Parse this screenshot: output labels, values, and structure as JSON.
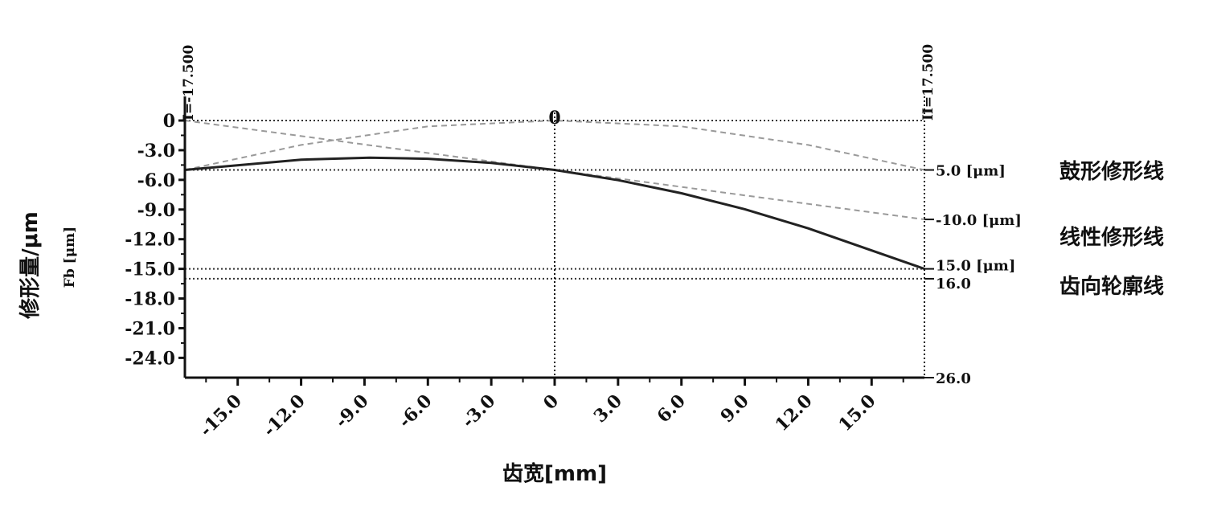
{
  "chart_data": {
    "type": "line",
    "xlabel": "齿宽[mm]",
    "ylabel": "修形量/μm",
    "ylabel_inner": "Fb [μm]",
    "xlim": [
      -17.5,
      17.5
    ],
    "ylim": [
      -26,
      0
    ],
    "x_ticks": [
      -15,
      -12,
      -9,
      -6,
      -3,
      0,
      3,
      6,
      9,
      12,
      15
    ],
    "x_tick_labels": [
      "-15.0",
      "-12.0",
      "-9.0",
      "-6.0",
      "-3.0",
      "0",
      "3.0",
      "6.0",
      "9.0",
      "12.0",
      "15.0"
    ],
    "y_ticks": [
      0,
      -3,
      -6,
      -9,
      -12,
      -15,
      -18,
      -21,
      -24
    ],
    "y_tick_labels": [
      "0",
      "-3.0",
      "-6.0",
      "-9.0",
      "-12.0",
      "-15.0",
      "-18.0",
      "-21.0",
      "-24.0"
    ],
    "top_left_label": "I=-17.500",
    "top_right_label": "II=17.500",
    "top_center_label": "0",
    "right_labels": [
      {
        "value": -5,
        "text": "5.0 [μm]"
      },
      {
        "value": -10,
        "text": "-10.0 [μm]"
      },
      {
        "value": -15,
        "text": "15.0 [μm]"
      },
      {
        "value": -16,
        "text": "16.0"
      },
      {
        "value": -26,
        "text": "26.0"
      }
    ],
    "reference_lines_y": [
      0,
      -5,
      -15,
      -16
    ],
    "series": [
      {
        "name": "鼓形修形线",
        "style": "dashed",
        "x": [
          -17.5,
          -12,
          -6,
          0,
          6,
          12,
          17.5
        ],
        "y": [
          -5,
          -2.47,
          -0.59,
          0,
          -0.59,
          -2.47,
          -5
        ]
      },
      {
        "name": "线性修形线",
        "style": "dashed",
        "x": [
          -17.5,
          0,
          17.5
        ],
        "y": [
          0,
          -5,
          -10
        ]
      },
      {
        "name": "齿向轮廓线",
        "style": "solid",
        "x": [
          -17.5,
          -12,
          -8.75,
          -6,
          -3,
          0,
          3,
          6,
          9,
          12,
          15,
          17.5
        ],
        "y": [
          -5,
          -3.96,
          -3.75,
          -3.87,
          -4.28,
          -5,
          -6.03,
          -7.35,
          -8.97,
          -10.9,
          -13.14,
          -15
        ]
      }
    ],
    "legend": [
      "鼓形修形线",
      "线性修形线",
      "齿向轮廓线"
    ],
    "colors": {
      "axis": "#111111",
      "dashed": "#9a9a9a",
      "solid": "#222222",
      "ref": "#333333"
    }
  }
}
